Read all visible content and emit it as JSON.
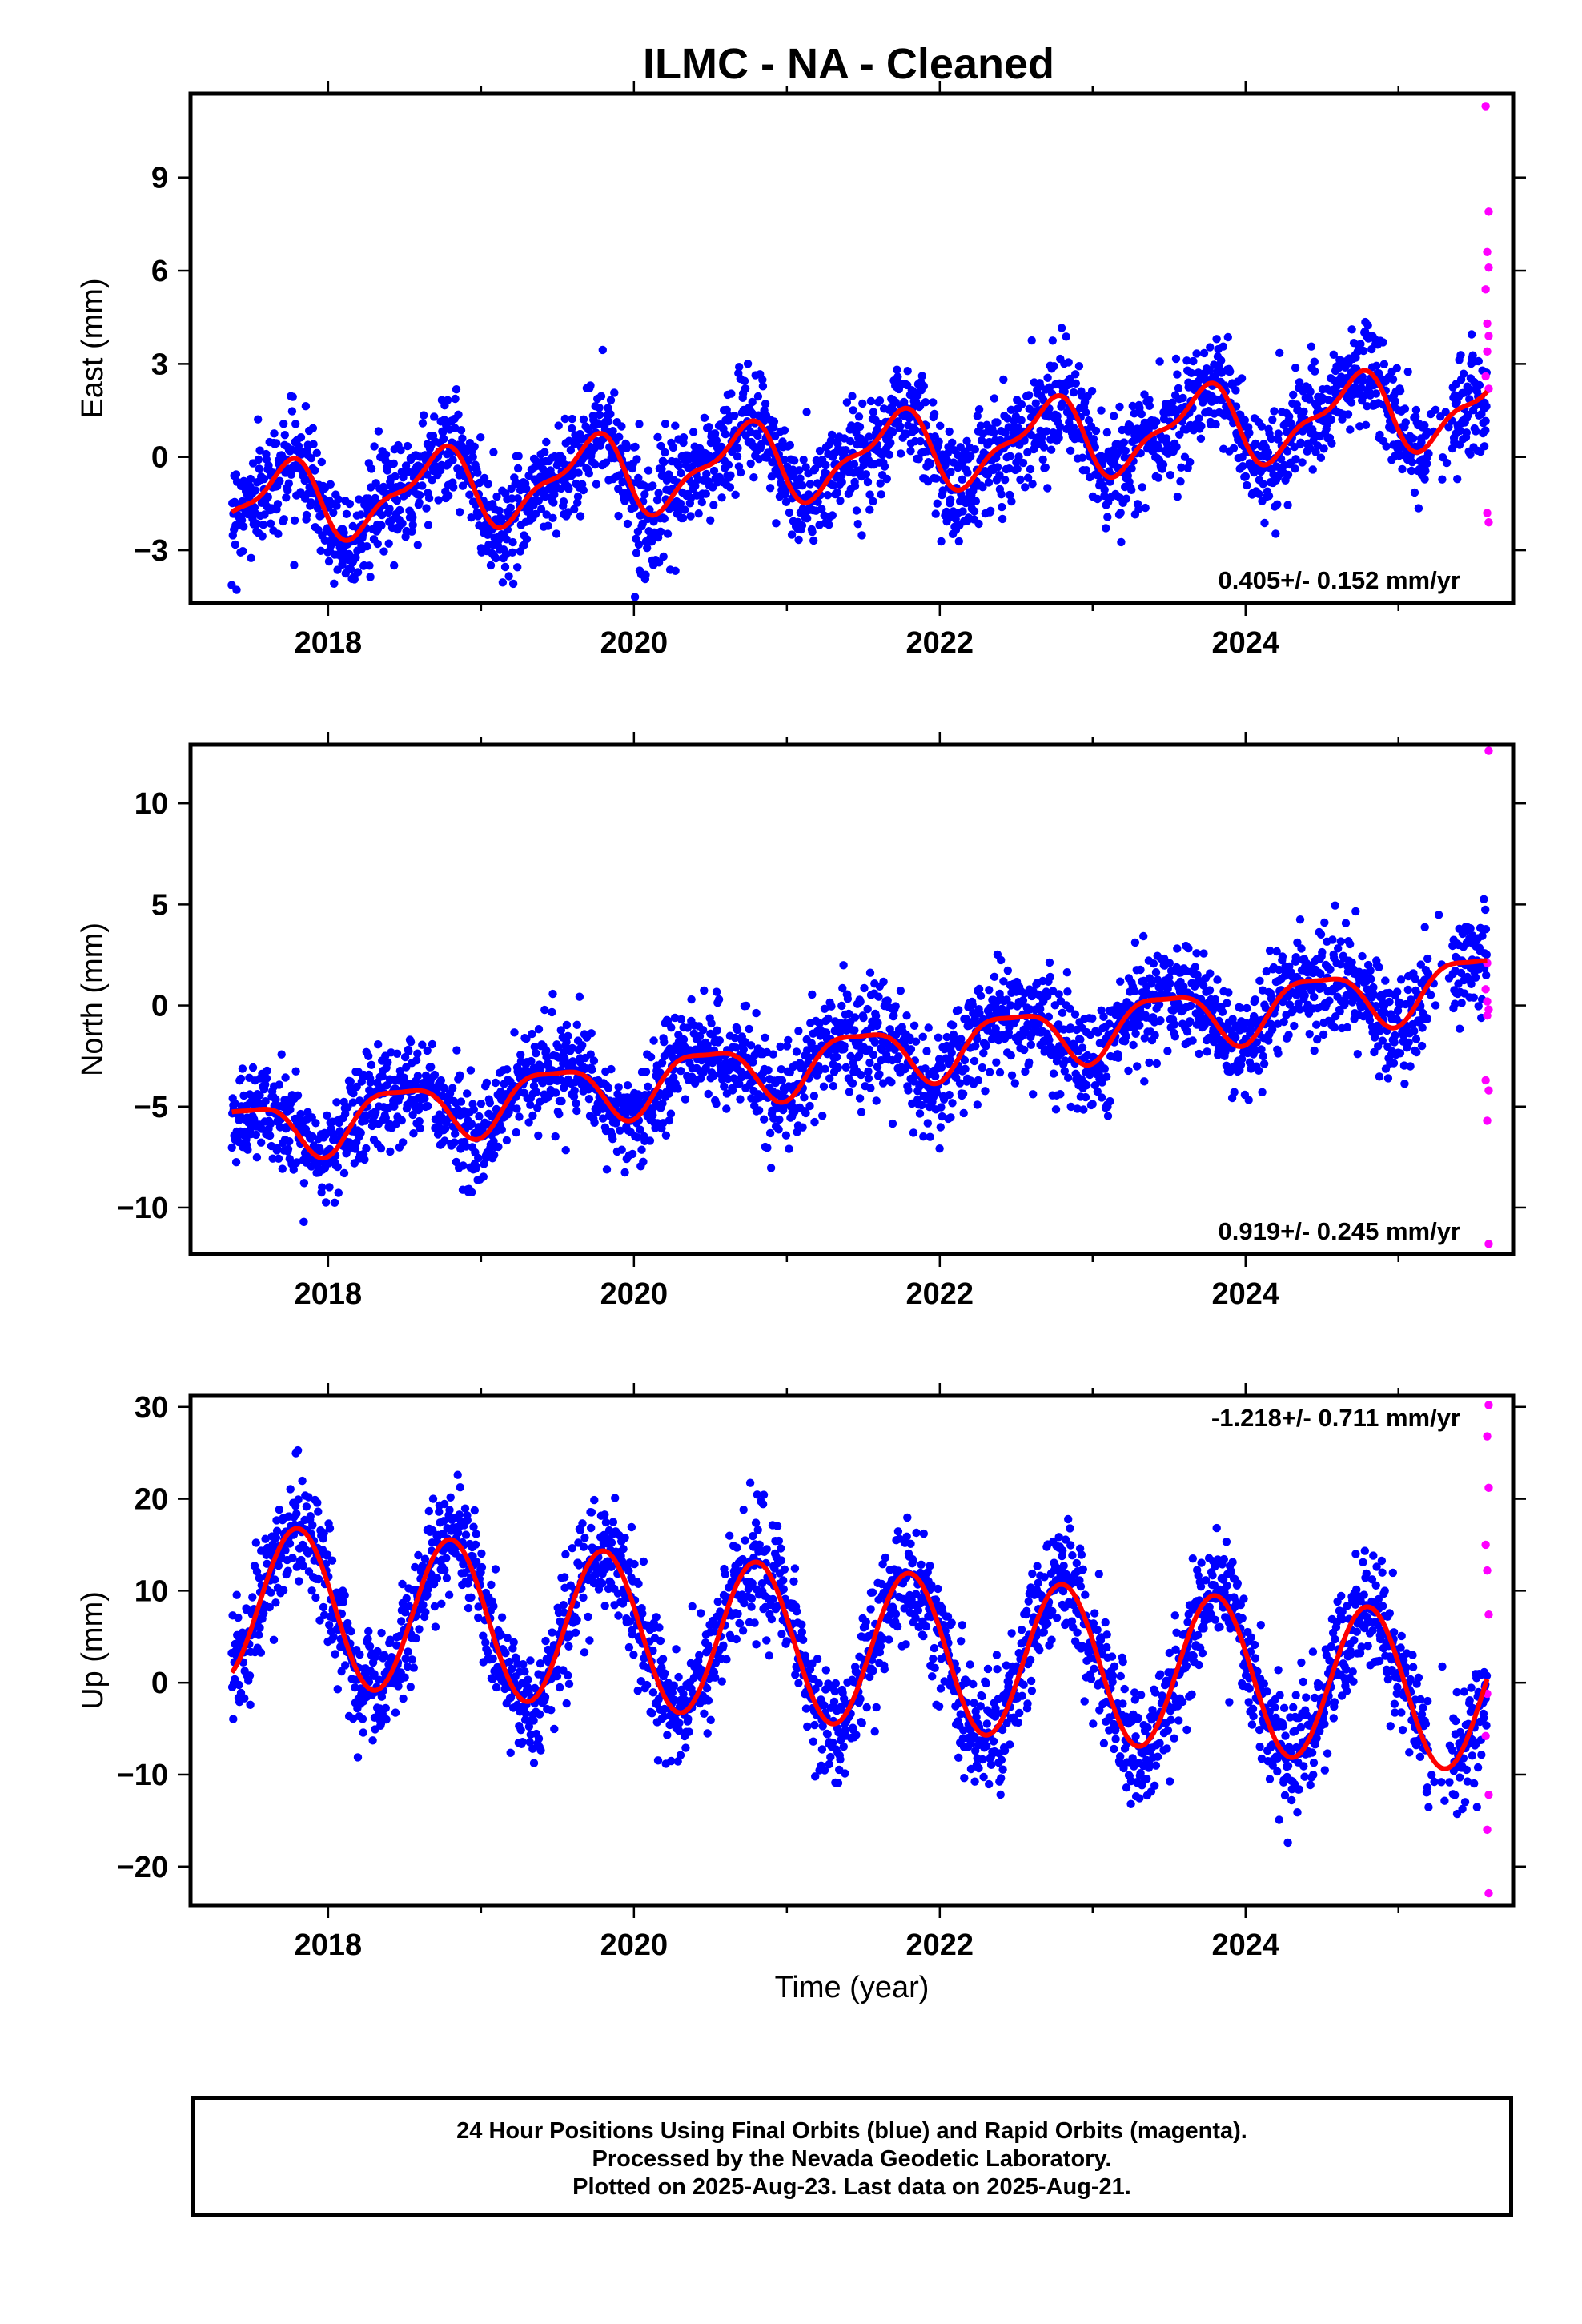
{
  "page_title": "ILMC  - NA - Cleaned",
  "colors": {
    "final_orbits": "#0000ff",
    "rapid_orbits": "#ff00ff",
    "model_fit": "#ff0000"
  },
  "footer": {
    "line1": "24 Hour Positions Using Final Orbits (blue) and Rapid Orbits (magenta).",
    "line2": "Processed by the Nevada Geodetic Laboratory.",
    "line3": "Plotted on 2025-Aug-23. Last data on 2025-Aug-21."
  },
  "chart_data": [
    {
      "type": "scatter",
      "component": "east",
      "title": "",
      "xlabel": "",
      "ylabel": "East (mm)",
      "xlim": [
        2017.1,
        2025.75
      ],
      "ylim": [
        -4.7,
        11.7
      ],
      "x_ticks": [
        2018,
        2020,
        2022,
        2024
      ],
      "y_ticks": [
        -3,
        0,
        3,
        6,
        9
      ],
      "y_tick_labels": [
        "−3",
        "0",
        "3",
        "6",
        "9"
      ],
      "rate_label": "0.405+/- 0.152 mm/yr",
      "rate_position": "bottom-right",
      "data_start": 2017.37,
      "data_end": 2025.58,
      "model": {
        "offset": -1.6,
        "trend_mm_per_yr": 0.405,
        "annual_amp": 1.15,
        "annual_phase_yr": 0.45,
        "semiannual_amp": 0.45,
        "semiannual_phase_yr": 0.2
      },
      "scatter_sd": 0.85,
      "points_final": 2600,
      "rapid_points": [
        {
          "x": 2025.57,
          "y": 11.3
        },
        {
          "x": 2025.59,
          "y": 7.9
        },
        {
          "x": 2025.58,
          "y": 6.6
        },
        {
          "x": 2025.59,
          "y": 6.1
        },
        {
          "x": 2025.57,
          "y": 5.4
        },
        {
          "x": 2025.58,
          "y": 4.3
        },
        {
          "x": 2025.59,
          "y": 3.9
        },
        {
          "x": 2025.58,
          "y": 3.4
        },
        {
          "x": 2025.57,
          "y": 2.6
        },
        {
          "x": 2025.59,
          "y": 2.2
        },
        {
          "x": 2025.58,
          "y": -1.8
        },
        {
          "x": 2025.59,
          "y": -2.1
        }
      ]
    },
    {
      "type": "scatter",
      "component": "north",
      "title": "",
      "xlabel": "",
      "ylabel": "North (mm)",
      "xlim": [
        2017.1,
        2025.75
      ],
      "ylim": [
        -12.3,
        12.9
      ],
      "x_ticks": [
        2018,
        2020,
        2022,
        2024
      ],
      "y_ticks": [
        -10,
        -5,
        0,
        5,
        10
      ],
      "y_tick_labels": [
        "−10",
        "−5",
        "0",
        "5",
        "10"
      ],
      "rate_label": "0.919+/- 0.245 mm/yr",
      "rate_position": "bottom-right",
      "data_start": 2017.37,
      "data_end": 2025.58,
      "model": {
        "offset": -6.3,
        "trend_mm_per_yr": 0.919,
        "annual_amp": 1.4,
        "annual_phase_yr": 0.22,
        "semiannual_amp": 0.4,
        "semiannual_phase_yr": 0.1
      },
      "scatter_sd": 1.25,
      "points_final": 2600,
      "rapid_points": [
        {
          "x": 2025.59,
          "y": 12.6
        },
        {
          "x": 2025.58,
          "y": 2.1
        },
        {
          "x": 2025.57,
          "y": 0.8
        },
        {
          "x": 2025.58,
          "y": 0.2
        },
        {
          "x": 2025.59,
          "y": -0.2
        },
        {
          "x": 2025.58,
          "y": -0.5
        },
        {
          "x": 2025.57,
          "y": -3.7
        },
        {
          "x": 2025.59,
          "y": -4.2
        },
        {
          "x": 2025.58,
          "y": -5.7
        },
        {
          "x": 2025.59,
          "y": -11.8
        }
      ]
    },
    {
      "type": "scatter",
      "component": "up",
      "title": "",
      "xlabel": "Time (year)",
      "ylabel": "Up (mm)",
      "xlim": [
        2017.1,
        2025.75
      ],
      "ylim": [
        -24.2,
        31.2
      ],
      "x_ticks": [
        2018,
        2020,
        2022,
        2024
      ],
      "y_ticks": [
        -20,
        -10,
        0,
        10,
        20,
        30
      ],
      "y_tick_labels": [
        "−20",
        "−10",
        "0",
        "10",
        "20",
        "30"
      ],
      "rate_label": "-1.218+/- 0.711 mm/yr",
      "rate_position": "top-right",
      "data_start": 2017.37,
      "data_end": 2025.58,
      "model": {
        "offset": 8.8,
        "trend_mm_per_yr": -1.218,
        "annual_amp": 8.5,
        "annual_phase_yr": 0.55,
        "semiannual_amp": 0.0,
        "semiannual_phase_yr": 0.0
      },
      "scatter_sd": 3.2,
      "points_final": 2600,
      "rapid_points": [
        {
          "x": 2025.59,
          "y": 30.2
        },
        {
          "x": 2025.58,
          "y": 26.8
        },
        {
          "x": 2025.59,
          "y": 21.2
        },
        {
          "x": 2025.57,
          "y": 15.0
        },
        {
          "x": 2025.58,
          "y": 12.2
        },
        {
          "x": 2025.59,
          "y": 7.4
        },
        {
          "x": 2025.58,
          "y": -1.2
        },
        {
          "x": 2025.57,
          "y": -5.8
        },
        {
          "x": 2025.59,
          "y": -12.2
        },
        {
          "x": 2025.58,
          "y": -16.0
        },
        {
          "x": 2025.59,
          "y": -22.9
        }
      ]
    }
  ]
}
